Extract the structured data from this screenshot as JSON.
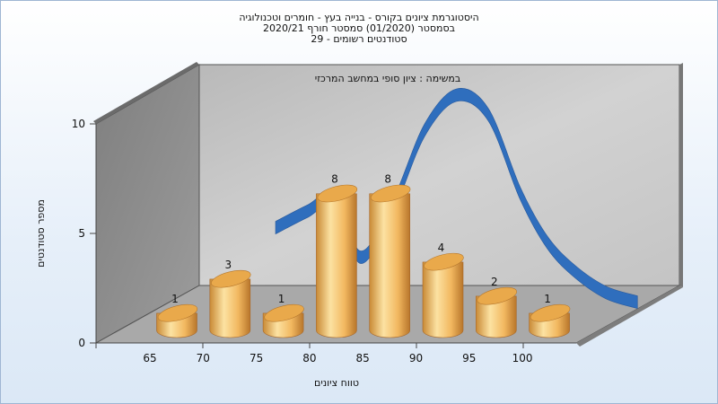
{
  "chart_data": {
    "type": "bar",
    "title_lines": [
      "היסטוגרמת ציונים בקורס - בנייה בעץ - חומרים וטכנולוגיה",
      "בסמסטר  (01/2020)  סמסטר חורף  2020/21",
      "סטודנטים רשומים - 29"
    ],
    "subtitle": "במשימה : ציון סופי במחשב המרכזי",
    "xlabel": "טווח ציונים",
    "ylabel": "מספר סטודנטים",
    "x_tick_labels": [
      "65",
      "70",
      "75",
      "80",
      "85",
      "90",
      "95",
      "100"
    ],
    "y_tick_labels": [
      "0",
      "5",
      "10"
    ],
    "ylim": [
      0,
      10
    ],
    "bar_values": [
      1,
      3,
      1,
      8,
      8,
      4,
      2,
      1
    ],
    "data_labels": [
      "1",
      "3",
      "1",
      "8",
      "8",
      "4",
      "2",
      "1"
    ],
    "curve_x": [
      72,
      75,
      77.5,
      80,
      83,
      86,
      89,
      92,
      95,
      97.5,
      100,
      103,
      106
    ],
    "curve_y": [
      3.95,
      4.7,
      5.2,
      2.6,
      4.9,
      8.4,
      10.0,
      9.1,
      5.5,
      3.3,
      2.0,
      1.0,
      0.55
    ],
    "grid": false,
    "legend": "none",
    "colors": {
      "bar_light": "#fbd88f",
      "bar_mid": "#f0b155",
      "bar_dark": "#b9762a",
      "curve": "#2f6ebd",
      "back_wall": "#c3c3c3",
      "side_wall": "#8e8e8e",
      "floor": "#a7a7a7"
    }
  }
}
